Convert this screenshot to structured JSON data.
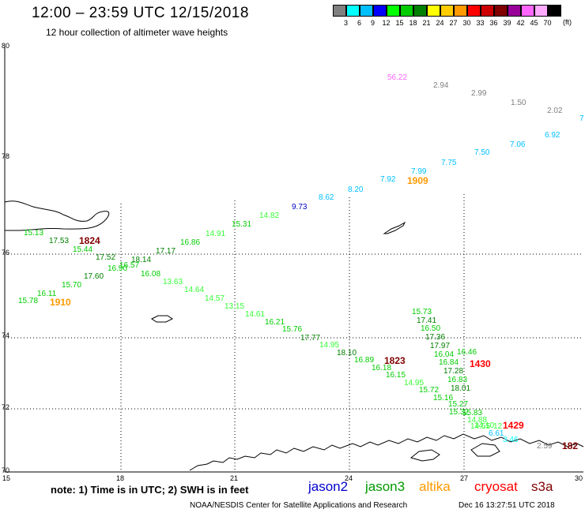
{
  "title": "12:00 – 23:59 UTC 12/15/2018",
  "subtitle": "12 hour collection of altimeter wave heights",
  "legend": {
    "unit": "(ft)",
    "items": [
      {
        "label": "3",
        "color": "#808080"
      },
      {
        "label": "6",
        "color": "#00ffff"
      },
      {
        "label": "9",
        "color": "#00bfff"
      },
      {
        "label": "12",
        "color": "#0000ff"
      },
      {
        "label": "15",
        "color": "#00ff00"
      },
      {
        "label": "18",
        "color": "#00cc00"
      },
      {
        "label": "21",
        "color": "#008000"
      },
      {
        "label": "24",
        "color": "#ffff00"
      },
      {
        "label": "27",
        "color": "#ffcc00"
      },
      {
        "label": "30",
        "color": "#ff9900"
      },
      {
        "label": "33",
        "color": "#ff0000"
      },
      {
        "label": "36",
        "color": "#cc0000"
      },
      {
        "label": "39",
        "color": "#800000"
      },
      {
        "label": "42",
        "color": "#990099"
      },
      {
        "label": "45",
        "color": "#ff66ff"
      },
      {
        "label": "70",
        "color": "#ffaaff"
      },
      {
        "label": "",
        "color": "#000000"
      }
    ]
  },
  "axes": {
    "lat_labels": [
      "80",
      "78",
      "76",
      "74",
      "72",
      "70"
    ],
    "lon_labels": [
      "15",
      "18",
      "21",
      "24",
      "27",
      "30"
    ]
  },
  "points": [
    {
      "v": "56.22",
      "c": "#ff66ff"
    },
    {
      "v": "2.94",
      "c": "#808080"
    },
    {
      "v": "2.99",
      "c": "#808080"
    },
    {
      "v": "1.50",
      "c": "#808080"
    },
    {
      "v": "2.02",
      "c": "#808080"
    },
    {
      "v": "7",
      "c": "#00bfff"
    },
    {
      "v": "6.92",
      "c": "#00bfff"
    },
    {
      "v": "7.06",
      "c": "#00bfff"
    },
    {
      "v": "7.50",
      "c": "#00bfff"
    },
    {
      "v": "7.75",
      "c": "#00bfff"
    },
    {
      "v": "7.99",
      "c": "#00bfff"
    },
    {
      "v": "7.92",
      "c": "#00bfff"
    },
    {
      "v": "8.20",
      "c": "#00bfff"
    },
    {
      "v": "8.62",
      "c": "#00bfff"
    },
    {
      "v": "9.73",
      "c": "#0000cc"
    },
    {
      "v": "14.82",
      "c": "#33ff33"
    },
    {
      "v": "15.31",
      "c": "#00cc00"
    },
    {
      "v": "14.91",
      "c": "#33ff33"
    },
    {
      "v": "16.86",
      "c": "#00cc00"
    },
    {
      "v": "17.17",
      "c": "#008000"
    },
    {
      "v": "15.13",
      "c": "#00cc00"
    },
    {
      "v": "17.53",
      "c": "#008000"
    },
    {
      "v": "15.44",
      "c": "#00cc00"
    },
    {
      "v": "17.52",
      "c": "#008000"
    },
    {
      "v": "18.14",
      "c": "#008000"
    },
    {
      "v": "16.57",
      "c": "#00cc00"
    },
    {
      "v": "16.90",
      "c": "#00cc00"
    },
    {
      "v": "17.60",
      "c": "#008000"
    },
    {
      "v": "16.08",
      "c": "#00cc00"
    },
    {
      "v": "13.63",
      "c": "#33ff33"
    },
    {
      "v": "15.70",
      "c": "#00cc00"
    },
    {
      "v": "16.11",
      "c": "#00cc00"
    },
    {
      "v": "15.78",
      "c": "#00cc00"
    },
    {
      "v": "14.64",
      "c": "#33ff33"
    },
    {
      "v": "14.57",
      "c": "#33ff33"
    },
    {
      "v": "13.15",
      "c": "#33ff33"
    },
    {
      "v": "14.61",
      "c": "#33ff33"
    },
    {
      "v": "16.21",
      "c": "#00cc00"
    },
    {
      "v": "15.76",
      "c": "#00cc00"
    },
    {
      "v": "17.77",
      "c": "#008000"
    },
    {
      "v": "14.95",
      "c": "#33ff33"
    },
    {
      "v": "18.10",
      "c": "#008000"
    },
    {
      "v": "16.89",
      "c": "#00cc00"
    },
    {
      "v": "16.18",
      "c": "#00cc00"
    },
    {
      "v": "16.15",
      "c": "#00cc00"
    },
    {
      "v": "14.95",
      "c": "#33ff33"
    },
    {
      "v": "15.72",
      "c": "#00cc00"
    },
    {
      "v": "15.16",
      "c": "#00cc00"
    },
    {
      "v": "15.73",
      "c": "#00cc00"
    },
    {
      "v": "17.41",
      "c": "#008000"
    },
    {
      "v": "16.50",
      "c": "#00cc00"
    },
    {
      "v": "17.36",
      "c": "#008000"
    },
    {
      "v": "17.97",
      "c": "#008000"
    },
    {
      "v": "16.04",
      "c": "#00cc00"
    },
    {
      "v": "16.84",
      "c": "#00cc00"
    },
    {
      "v": "17.28",
      "c": "#008000"
    },
    {
      "v": "16.83",
      "c": "#00cc00"
    },
    {
      "v": "18.01",
      "c": "#008000"
    },
    {
      "v": "16.46",
      "c": "#00cc00"
    },
    {
      "v": "15.27",
      "c": "#00cc00"
    },
    {
      "v": "15.32",
      "c": "#00cc00"
    },
    {
      "v": "15.83",
      "c": "#00cc00"
    },
    {
      "v": "14.88",
      "c": "#33ff33"
    },
    {
      "v": "14.10",
      "c": "#33ff33"
    },
    {
      "v": "14.55",
      "c": "#33ff33"
    },
    {
      "v": "12",
      "c": "#33ff33"
    },
    {
      "v": "6.61",
      "c": "#00bfff"
    },
    {
      "v": "3.46",
      "c": "#00ffff"
    },
    {
      "v": "2.59",
      "c": "#808080"
    }
  ],
  "times": [
    {
      "v": "1824",
      "c": "#800000"
    },
    {
      "v": "1910",
      "c": "#ff9900"
    },
    {
      "v": "1909",
      "c": "#ff9900"
    },
    {
      "v": "1823",
      "c": "#800000"
    },
    {
      "v": "1430",
      "c": "#ff0000"
    },
    {
      "v": "1429",
      "c": "#ff0000"
    },
    {
      "v": "182",
      "c": "#800000"
    }
  ],
  "note": "note: 1) Time is in UTC; 2) SWH is in feet",
  "satellites": [
    {
      "name": "jason2",
      "color": "#0000cc"
    },
    {
      "name": "jason3",
      "color": "#009900"
    },
    {
      "name": "altika",
      "color": "#ff9900"
    },
    {
      "name": "cryosat",
      "color": "#ff0000"
    },
    {
      "name": "s3a",
      "color": "#800000"
    }
  ],
  "credit": "NOAA/NESDIS Center for Satellite Applications and Research",
  "timestamp": "Dec 16 13:27:51 UTC 2018"
}
